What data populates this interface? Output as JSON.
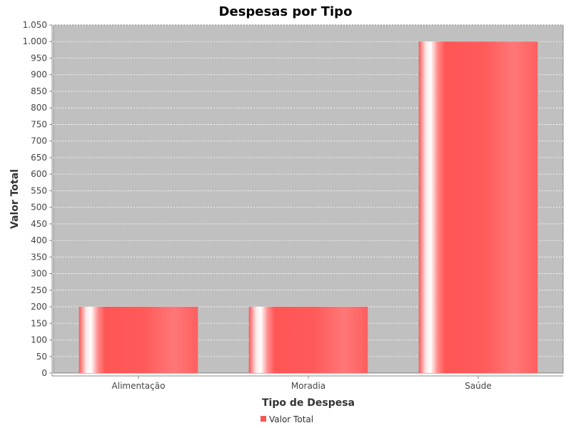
{
  "chart_data": {
    "type": "bar",
    "title": "Despesas por Tipo",
    "xlabel": "Tipo de Despesa",
    "ylabel": "Valor Total",
    "categories": [
      "Alimentação",
      "Moradia",
      "Saúde"
    ],
    "series": [
      {
        "name": "Valor Total",
        "values": [
          200,
          200,
          1000
        ],
        "color": "#ff5555"
      }
    ],
    "ylim": [
      0,
      1050
    ],
    "yticks": [
      0,
      50,
      100,
      150,
      200,
      250,
      300,
      350,
      400,
      450,
      500,
      550,
      600,
      650,
      700,
      750,
      800,
      850,
      900,
      950,
      1000,
      1050
    ],
    "ytick_labels": [
      "0",
      "50",
      "100",
      "150",
      "200",
      "250",
      "300",
      "350",
      "400",
      "450",
      "500",
      "550",
      "600",
      "650",
      "700",
      "750",
      "800",
      "850",
      "900",
      "950",
      "1.000",
      "1.050"
    ],
    "grid": true,
    "legend_position": "bottom-center",
    "plot_background": "#c0c0c0"
  }
}
